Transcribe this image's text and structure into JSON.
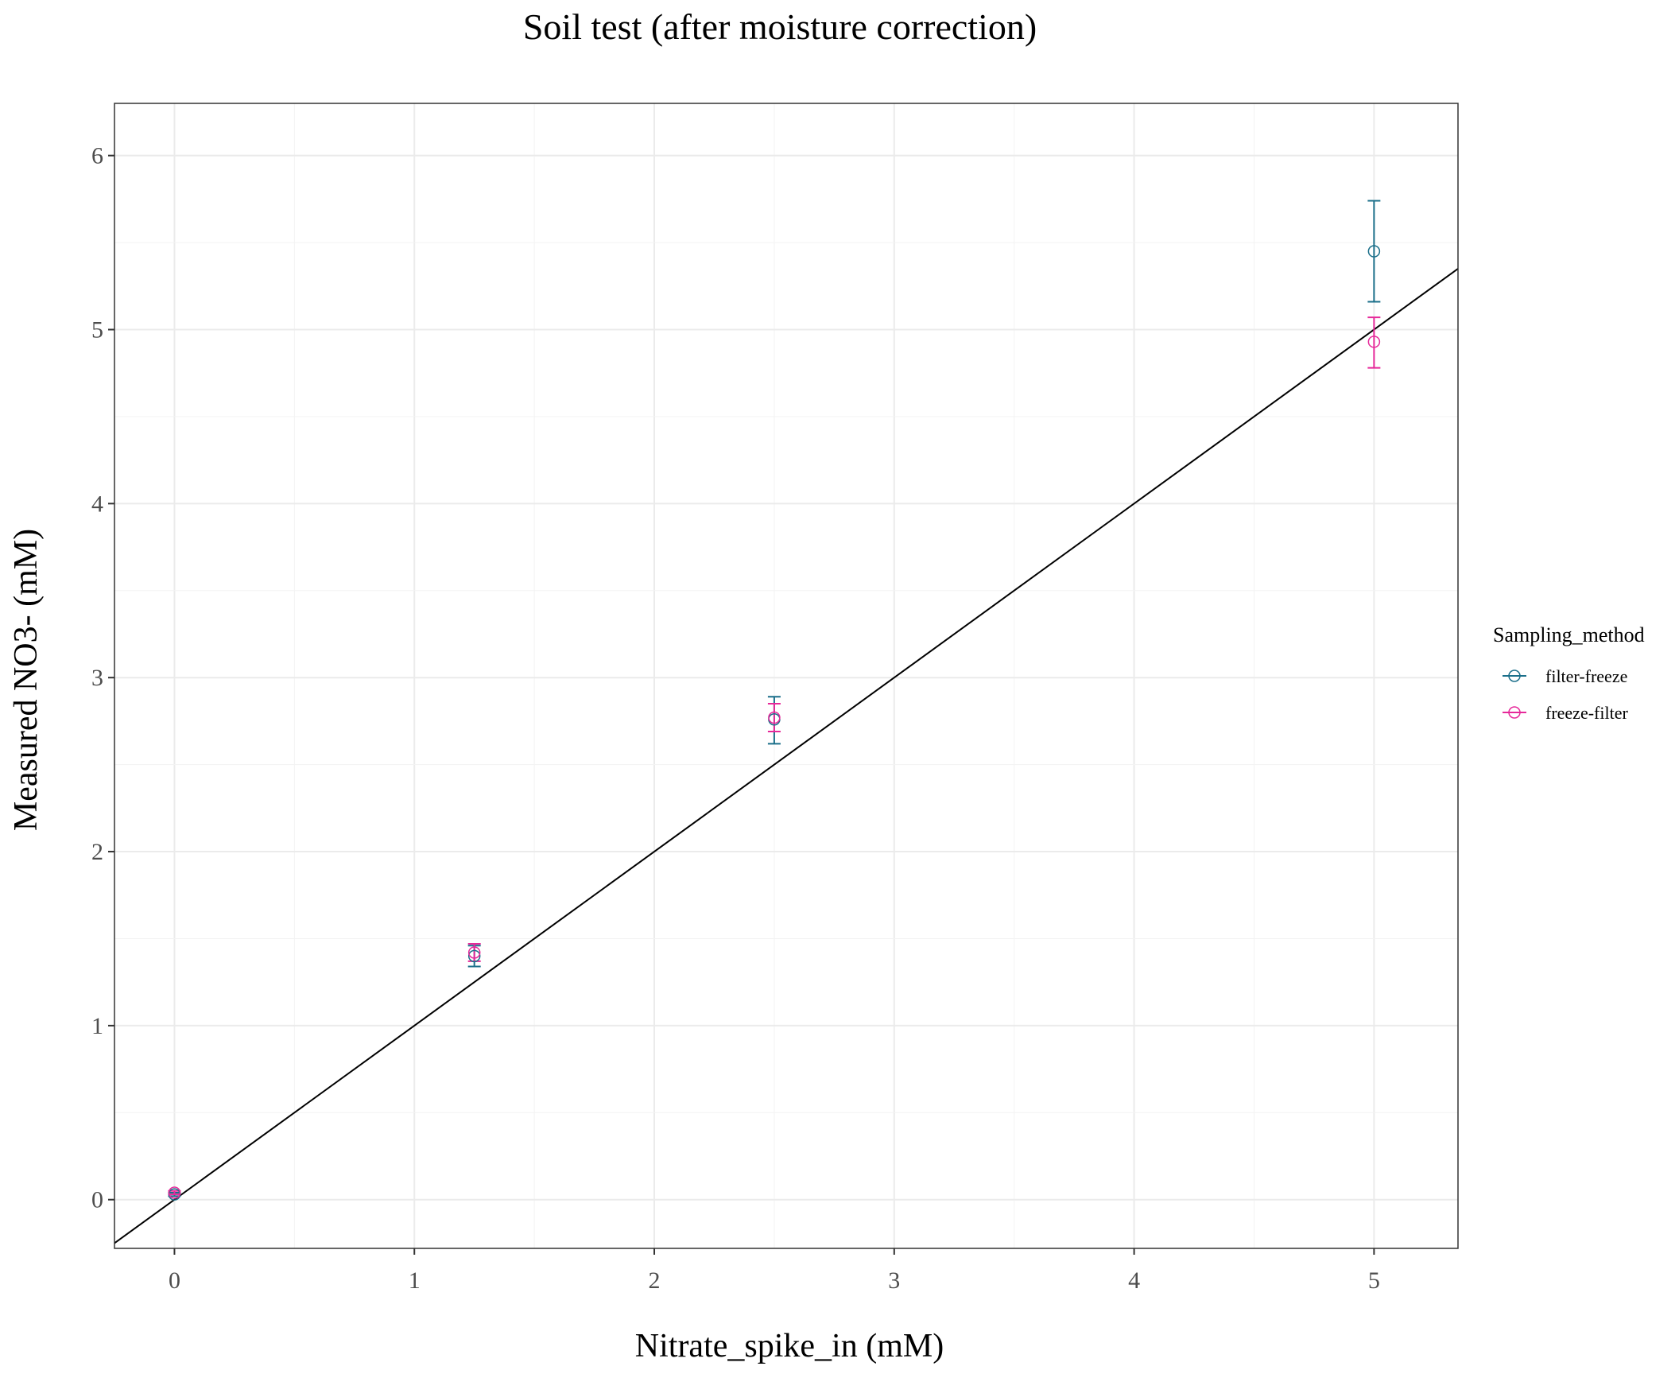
{
  "chart_data": {
    "type": "scatter",
    "title": "Soil test (after moisture correction)",
    "xlabel": "Nitrate_spike_in (mM)",
    "ylabel": "Measured NO3- (mM)",
    "xlim": [
      -0.25,
      5.35
    ],
    "ylim": [
      -0.28,
      6.3
    ],
    "x_ticks": [
      0,
      1,
      2,
      3,
      4,
      5
    ],
    "y_ticks": [
      0,
      1,
      2,
      3,
      4,
      5,
      6
    ],
    "x_tick_labels": [
      "0",
      "1",
      "2",
      "3",
      "4",
      "5"
    ],
    "y_tick_labels": [
      "0",
      "1",
      "2",
      "3",
      "4",
      "5",
      "6"
    ],
    "grid": true,
    "legend": {
      "title": "Sampling_method",
      "position": "right"
    },
    "reference_line": {
      "slope": 1,
      "intercept": 0,
      "color": "#000000"
    },
    "series": [
      {
        "name": "filter-freeze",
        "color": "#1b6f8a",
        "x": [
          0,
          1.25,
          2.5,
          5
        ],
        "y": [
          0.03,
          1.4,
          2.76,
          5.45
        ],
        "error_low": [
          0.02,
          1.34,
          2.62,
          5.16
        ],
        "error_high": [
          0.04,
          1.46,
          2.89,
          5.74
        ]
      },
      {
        "name": "freeze-filter",
        "color": "#e6299a",
        "x": [
          0,
          1.25,
          2.5,
          5
        ],
        "y": [
          0.04,
          1.42,
          2.77,
          4.93
        ],
        "error_low": [
          0.03,
          1.37,
          2.69,
          4.78
        ],
        "error_high": [
          0.05,
          1.47,
          2.85,
          5.07
        ]
      }
    ]
  }
}
